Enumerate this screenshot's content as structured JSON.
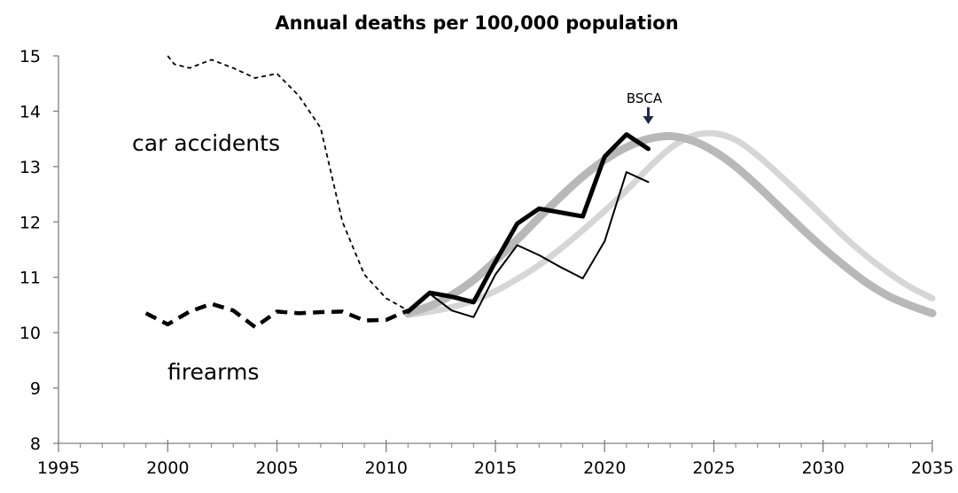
{
  "chart_data": {
    "type": "line",
    "title": "Annual deaths per 100,000 population",
    "xlabel": "",
    "ylabel": "",
    "xlim": [
      1995,
      2035
    ],
    "ylim": [
      8,
      15
    ],
    "x_ticks": [
      1995,
      2000,
      2005,
      2010,
      2015,
      2020,
      2025,
      2030,
      2035
    ],
    "y_ticks": [
      8,
      9,
      10,
      11,
      12,
      13,
      14,
      15
    ],
    "grid": false,
    "legend": "none",
    "annotations": {
      "car_label": "car accidents",
      "firearms_label": "firearms",
      "bsca_label": "BSCA",
      "bsca_x": 2022
    },
    "series": [
      {
        "style": "dashed-thin",
        "color": "#000000",
        "x": [
          2000,
          2000.3,
          2001,
          2002,
          2003,
          2004,
          2005,
          2006,
          2007,
          2008,
          2009,
          2010,
          2011
        ],
        "y": [
          15.0,
          14.85,
          14.78,
          14.93,
          14.78,
          14.6,
          14.68,
          14.28,
          13.7,
          12.0,
          11.05,
          10.62,
          10.4
        ]
      },
      {
        "style": "dashed-thick",
        "color": "#000000",
        "x": [
          1999,
          2000,
          2001,
          2002,
          2003,
          2004,
          2005,
          2006,
          2007,
          2008,
          2009,
          2010,
          2011
        ],
        "y": [
          10.35,
          10.15,
          10.38,
          10.52,
          10.4,
          10.1,
          10.38,
          10.35,
          10.37,
          10.38,
          10.22,
          10.23,
          10.4
        ]
      },
      {
        "style": "solid-thick",
        "color": "#000000",
        "x": [
          2011,
          2012,
          2013,
          2014,
          2015,
          2016,
          2017,
          2018,
          2019,
          2020,
          2021,
          2022
        ],
        "y": [
          10.38,
          10.72,
          10.65,
          10.55,
          11.28,
          11.97,
          12.24,
          12.17,
          12.1,
          13.18,
          13.58,
          13.32
        ]
      },
      {
        "style": "solid-thin",
        "color": "#000000",
        "x": [
          2012,
          2013,
          2014,
          2015,
          2016,
          2017,
          2018,
          2019,
          2020,
          2021,
          2022
        ],
        "y": [
          10.7,
          10.4,
          10.28,
          11.05,
          11.58,
          11.4,
          11.18,
          10.98,
          11.65,
          12.9,
          12.72
        ]
      },
      {
        "style": "smooth-dark-gray",
        "color": "#b8b8b8",
        "x": [
          2011,
          2012,
          2013,
          2014,
          2015,
          2016,
          2017,
          2018,
          2019,
          2020,
          2021,
          2022,
          2023,
          2024,
          2025,
          2026,
          2027,
          2028,
          2029,
          2030,
          2031,
          2032,
          2033,
          2034,
          2035
        ],
        "y": [
          10.35,
          10.48,
          10.68,
          10.95,
          11.3,
          11.68,
          12.08,
          12.46,
          12.82,
          13.12,
          13.35,
          13.5,
          13.55,
          13.47,
          13.28,
          13.0,
          12.65,
          12.27,
          11.89,
          11.53,
          11.2,
          10.9,
          10.66,
          10.49,
          10.35
        ]
      },
      {
        "style": "smooth-light-gray",
        "color": "#d6d6d6",
        "x": [
          2011,
          2012,
          2013,
          2014,
          2015,
          2016,
          2017,
          2018,
          2019,
          2020,
          2021,
          2022,
          2023,
          2024,
          2025,
          2026,
          2027,
          2028,
          2029,
          2030,
          2031,
          2032,
          2033,
          2034,
          2035
        ],
        "y": [
          10.32,
          10.38,
          10.46,
          10.58,
          10.75,
          10.97,
          11.22,
          11.52,
          11.85,
          12.2,
          12.57,
          12.97,
          13.33,
          13.55,
          13.6,
          13.48,
          13.2,
          12.85,
          12.48,
          12.1,
          11.72,
          11.38,
          11.08,
          10.82,
          10.62
        ]
      }
    ]
  }
}
